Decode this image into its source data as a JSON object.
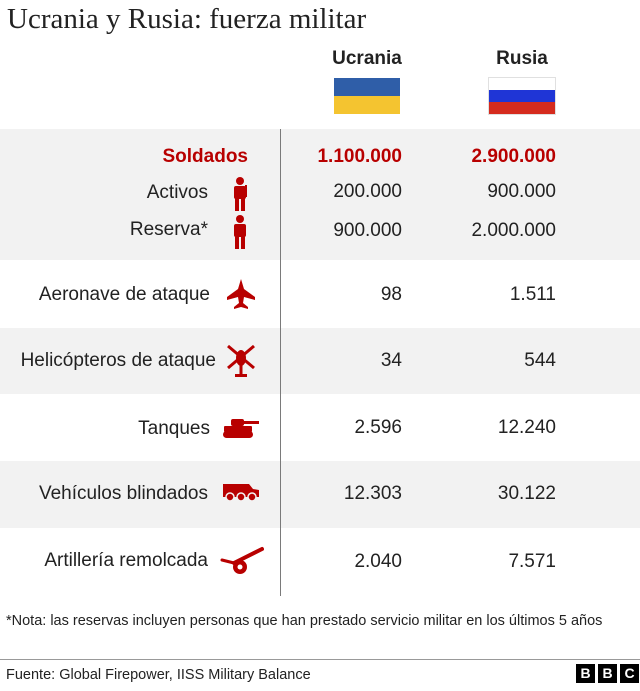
{
  "title": "Ucrania y Rusia: fuerza militar",
  "columns": {
    "ukraine": "Ucrania",
    "russia": "Rusia"
  },
  "colors": {
    "accent": "#b80000",
    "band": "#f2f2f2",
    "ukraine_blue": "#2f5ea8",
    "ukraine_yellow": "#f4c430",
    "russia_white": "#ffffff",
    "russia_blue": "#1f35d6",
    "russia_red": "#d52b1e"
  },
  "rows": {
    "soldiers": {
      "label": "Soldados",
      "ukraine": "1.100.000",
      "russia": "2.900.000"
    },
    "active": {
      "label": "Activos",
      "icon": "soldier-icon",
      "ukraine": "200.000",
      "russia": "900.000"
    },
    "reserve": {
      "label": "Reserva*",
      "icon": "person-icon",
      "ukraine": "900.000",
      "russia": "2.000.000"
    },
    "aircraft": {
      "label": "Aeronave de ataque",
      "icon": "fighter-jet-icon",
      "ukraine": "98",
      "russia": "1.511"
    },
    "helicopters": {
      "label": "Helicópteros de ataque",
      "icon": "helicopter-icon",
      "ukraine": "34",
      "russia": "544"
    },
    "tanks": {
      "label": "Tanques",
      "icon": "tank-icon",
      "ukraine": "2.596",
      "russia": "12.240"
    },
    "armored": {
      "label": "Vehículos blindados",
      "icon": "armored-vehicle-icon",
      "ukraine": "12.303",
      "russia": "30.122"
    },
    "artillery": {
      "label": "Artillería remolcada",
      "icon": "artillery-icon",
      "ukraine": "2.040",
      "russia": "7.571"
    }
  },
  "chart_data": {
    "type": "table",
    "title": "Ucrania y Rusia: fuerza militar",
    "columns": [
      "Ucrania",
      "Rusia"
    ],
    "categories": [
      "Soldados",
      "Activos",
      "Reserva*",
      "Aeronave de ataque",
      "Helicópteros de ataque",
      "Tanques",
      "Vehículos blindados",
      "Artillería remolcada"
    ],
    "series": [
      {
        "name": "Ucrania",
        "values": [
          1100000,
          200000,
          900000,
          98,
          34,
          2596,
          12303,
          2040
        ]
      },
      {
        "name": "Rusia",
        "values": [
          2900000,
          900000,
          2000000,
          1511,
          544,
          12240,
          30122,
          7571
        ]
      }
    ]
  },
  "footnote": "*Nota: las reservas incluyen personas que han prestado servicio militar en los últimos 5 años",
  "source": "Fuente: Global Firepower, IISS Military Balance",
  "logo": [
    "B",
    "B",
    "C"
  ]
}
